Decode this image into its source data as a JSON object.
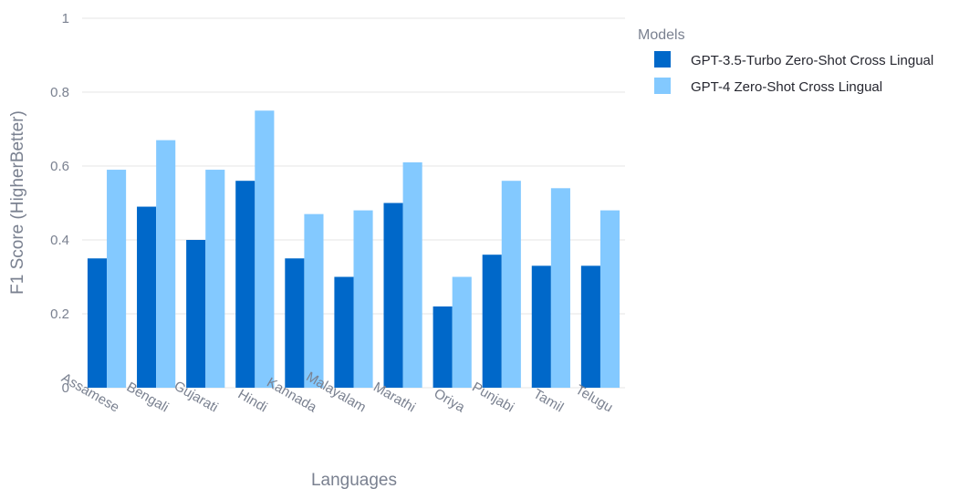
{
  "chart_data": {
    "type": "bar",
    "xlabel": "Languages",
    "ylabel": "F1 Score (HigherBetter)",
    "ylim": [
      0,
      1
    ],
    "yticks": [
      "0",
      "0.2",
      "0.4",
      "0.6",
      "0.8",
      "1"
    ],
    "categories": [
      "Assamese",
      "Bengali",
      "Gujarati",
      "Hindi",
      "Kannada",
      "Malayalam",
      "Marathi",
      "Oriya",
      "Punjabi",
      "Tamil",
      "Telugu"
    ],
    "legend_title": "Models",
    "legend_position": "top-right",
    "grid": true,
    "series": [
      {
        "name": "GPT-3.5-Turbo Zero-Shot Cross Lingual",
        "color": "#0068c9",
        "values": [
          0.35,
          0.49,
          0.4,
          0.56,
          0.35,
          0.3,
          0.5,
          0.22,
          0.36,
          0.33,
          0.33
        ]
      },
      {
        "name": "GPT-4 Zero-Shot Cross Lingual",
        "color": "#83c9ff",
        "values": [
          0.59,
          0.67,
          0.59,
          0.75,
          0.47,
          0.48,
          0.61,
          0.3,
          0.56,
          0.54,
          0.48
        ]
      }
    ]
  }
}
